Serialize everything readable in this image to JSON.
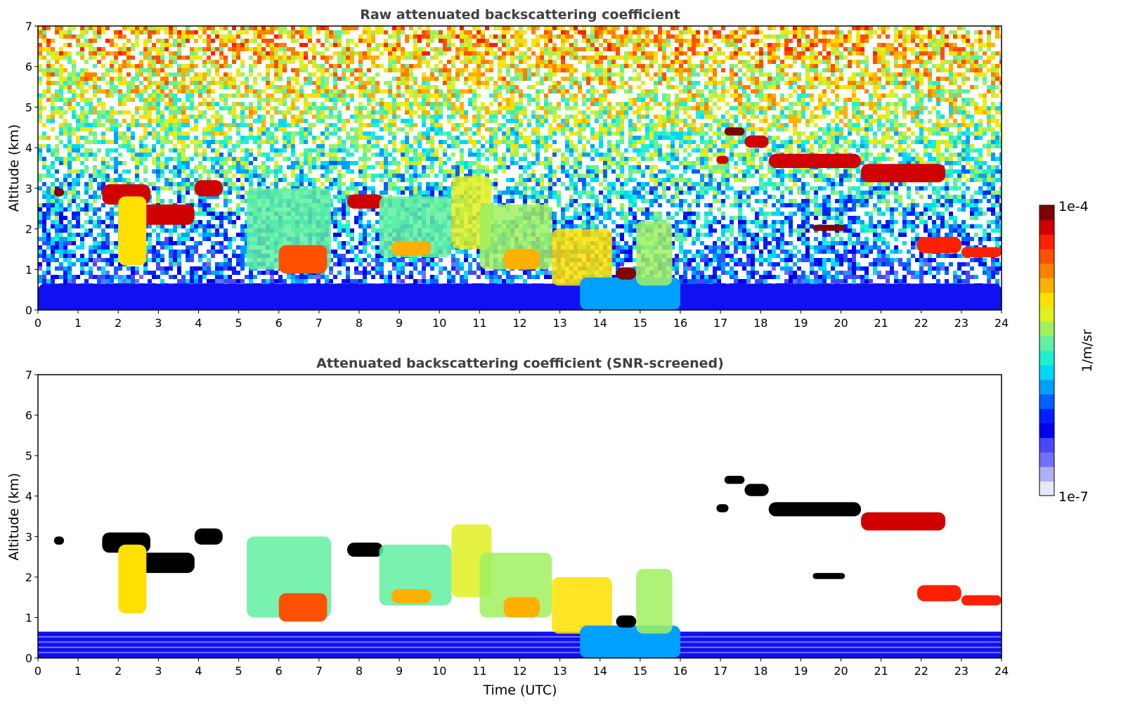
{
  "chart_data": [
    {
      "type": "heatmap",
      "title": "Raw attenuated backscattering coefficient",
      "xlabel": "",
      "ylabel": "Altitude (km)",
      "xlim": [
        0,
        24
      ],
      "ylim": [
        0,
        7
      ],
      "xticks": [
        "0",
        "1",
        "2",
        "3",
        "4",
        "5",
        "6",
        "7",
        "8",
        "9",
        "10",
        "11",
        "12",
        "13",
        "14",
        "15",
        "16",
        "17",
        "18",
        "19",
        "20",
        "21",
        "22",
        "23",
        "24"
      ],
      "yticks": [
        "0",
        "1",
        "2",
        "3",
        "4",
        "5",
        "6",
        "7"
      ],
      "features": [
        {
          "name": "surface-layer",
          "t0": 0,
          "t1": 24,
          "z0": 0,
          "z1": 0.65,
          "level": 0.15
        },
        {
          "name": "cloud-patch",
          "t0": 0.4,
          "t1": 0.65,
          "z0": 2.8,
          "z1": 3.0,
          "level": 0.98
        },
        {
          "name": "cloud-patch",
          "t0": 1.6,
          "t1": 2.8,
          "z0": 2.6,
          "z1": 3.1,
          "level": 0.97
        },
        {
          "name": "cloud-patch",
          "t0": 2.5,
          "t1": 3.9,
          "z0": 2.1,
          "z1": 2.6,
          "level": 0.97
        },
        {
          "name": "cloud-patch",
          "t0": 3.9,
          "t1": 4.6,
          "z0": 2.8,
          "z1": 3.2,
          "level": 0.97
        },
        {
          "name": "virga",
          "t0": 2.0,
          "t1": 2.7,
          "z0": 1.1,
          "z1": 2.8,
          "level": 0.7
        },
        {
          "name": "aerosol-layer",
          "t0": 5.2,
          "t1": 7.3,
          "z0": 1.0,
          "z1": 3.0,
          "level": 0.55
        },
        {
          "name": "cloud-base",
          "t0": 6.0,
          "t1": 7.2,
          "z0": 0.9,
          "z1": 1.6,
          "level": 0.82
        },
        {
          "name": "cloud-patch",
          "t0": 7.7,
          "t1": 8.6,
          "z0": 2.5,
          "z1": 2.85,
          "level": 0.97
        },
        {
          "name": "aerosol-layer",
          "t0": 8.5,
          "t1": 10.3,
          "z0": 1.3,
          "z1": 2.8,
          "level": 0.55
        },
        {
          "name": "cloud-base",
          "t0": 8.8,
          "t1": 9.8,
          "z0": 1.35,
          "z1": 1.7,
          "level": 0.72
        },
        {
          "name": "aerosol-layer",
          "t0": 10.3,
          "t1": 11.3,
          "z0": 1.5,
          "z1": 3.3,
          "level": 0.62
        },
        {
          "name": "aerosol-layer",
          "t0": 11.0,
          "t1": 12.8,
          "z0": 1.0,
          "z1": 2.6,
          "level": 0.6
        },
        {
          "name": "cloud-base",
          "t0": 11.6,
          "t1": 12.5,
          "z0": 1.0,
          "z1": 1.5,
          "level": 0.75
        },
        {
          "name": "aerosol-layer",
          "t0": 12.8,
          "t1": 14.3,
          "z0": 0.6,
          "z1": 2.0,
          "level": 0.68
        },
        {
          "name": "low-scatter",
          "t0": 13.5,
          "t1": 16.0,
          "z0": 0,
          "z1": 0.8,
          "level": 0.35
        },
        {
          "name": "cloud-patch",
          "t0": 14.4,
          "t1": 14.9,
          "z0": 0.75,
          "z1": 1.05,
          "level": 1.0
        },
        {
          "name": "aerosol-layer",
          "t0": 14.9,
          "t1": 15.8,
          "z0": 0.6,
          "z1": 2.2,
          "level": 0.6
        },
        {
          "name": "cloud-patch",
          "t0": 17.1,
          "t1": 17.6,
          "z0": 4.3,
          "z1": 4.5,
          "level": 0.98
        },
        {
          "name": "cloud-patch",
          "t0": 17.6,
          "t1": 18.2,
          "z0": 4.0,
          "z1": 4.3,
          "level": 0.97
        },
        {
          "name": "cirrus-band",
          "t0": 18.2,
          "t1": 20.5,
          "z0": 3.5,
          "z1": 3.85,
          "level": 0.95
        },
        {
          "name": "cirrus-band",
          "t0": 20.5,
          "t1": 22.6,
          "z0": 3.15,
          "z1": 3.6,
          "level": 0.93
        },
        {
          "name": "cloud-patch",
          "t0": 16.9,
          "t1": 17.2,
          "z0": 3.6,
          "z1": 3.8,
          "level": 0.97
        },
        {
          "name": "cloud-patch",
          "t0": 19.3,
          "t1": 20.1,
          "z0": 1.95,
          "z1": 2.1,
          "level": 0.98
        },
        {
          "name": "cloud-patch",
          "t0": 21.9,
          "t1": 23.0,
          "z0": 1.4,
          "z1": 1.8,
          "level": 0.92
        },
        {
          "name": "cloud-patch",
          "t0": 23.0,
          "t1": 24,
          "z0": 1.3,
          "z1": 1.55,
          "level": 0.92
        }
      ]
    },
    {
      "type": "heatmap",
      "title": "Attenuated backscattering coefficient (SNR-screened)",
      "xlabel": "Time (UTC)",
      "ylabel": "Altitude (km)",
      "xlim": [
        0,
        24
      ],
      "ylim": [
        0,
        7
      ],
      "xticks": [
        "0",
        "1",
        "2",
        "3",
        "4",
        "5",
        "6",
        "7",
        "8",
        "9",
        "10",
        "11",
        "12",
        "13",
        "14",
        "15",
        "16",
        "17",
        "18",
        "19",
        "20",
        "21",
        "22",
        "23",
        "24"
      ],
      "yticks": [
        "0",
        "1",
        "2",
        "3",
        "4",
        "5",
        "6",
        "7"
      ],
      "screened": true
    }
  ],
  "colorbar": {
    "label": "1/m/sr",
    "max_label": "1e-4",
    "min_label": "1e-7",
    "colormap": [
      "#e8e8f8",
      "#b0b0f8",
      "#7070f8",
      "#4848f8",
      "#0000f0",
      "#0020ff",
      "#0060ff",
      "#00a0ff",
      "#00d8f8",
      "#20f0d0",
      "#60f0a0",
      "#a0f060",
      "#e0f020",
      "#ffe000",
      "#ffb000",
      "#ff8000",
      "#ff5000",
      "#ff2000",
      "#d00000",
      "#800000"
    ]
  }
}
